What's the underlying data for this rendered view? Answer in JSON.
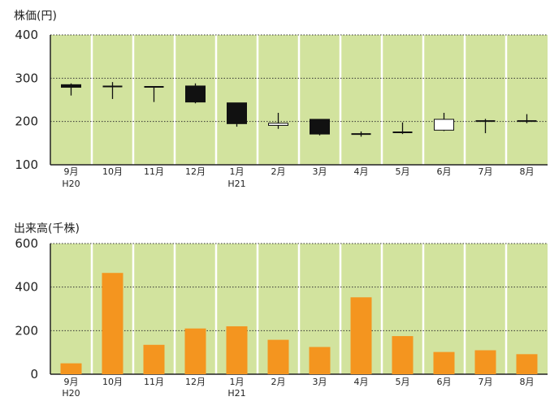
{
  "chart_data": [
    {
      "type": "candlestick",
      "title": "株価(円)",
      "ylim": [
        100,
        400
      ],
      "yticks": [
        "400",
        "300",
        "200",
        "100"
      ],
      "grid": true,
      "plot_background": "#d2e39e",
      "categories": [
        "9月",
        "10月",
        "11月",
        "12月",
        "1月",
        "2月",
        "3月",
        "4月",
        "5月",
        "6月",
        "7月",
        "8月"
      ],
      "sub_labels": [
        "H20",
        "",
        "",
        "",
        "H21",
        "",
        "",
        "",
        "",
        "",
        "",
        ""
      ],
      "candles": [
        {
          "open": 285,
          "close": 279,
          "high": 288,
          "low": 260
        },
        {
          "open": 281,
          "close": 281,
          "high": 291,
          "low": 252
        },
        {
          "open": 280,
          "close": 280,
          "high": 281,
          "low": 245
        },
        {
          "open": 282,
          "close": 245,
          "high": 288,
          "low": 242
        },
        {
          "open": 243,
          "close": 195,
          "high": 243,
          "low": 188
        },
        {
          "open": 191,
          "close": 196,
          "high": 220,
          "low": 183
        },
        {
          "open": 205,
          "close": 171,
          "high": 205,
          "low": 168
        },
        {
          "open": 171,
          "close": 169,
          "high": 177,
          "low": 165
        },
        {
          "open": 175,
          "close": 174,
          "high": 198,
          "low": 171
        },
        {
          "open": 180,
          "close": 205,
          "high": 220,
          "low": 178
        },
        {
          "open": 201,
          "close": 200,
          "high": 206,
          "low": 173
        },
        {
          "open": 201,
          "close": 198,
          "high": 217,
          "low": 196
        }
      ]
    },
    {
      "type": "bar",
      "title": "出来高(千株)",
      "ylim": [
        0,
        600
      ],
      "yticks": [
        "600",
        "400",
        "200",
        "0"
      ],
      "grid": true,
      "plot_background": "#d2e39e",
      "bar_color": "#f4951f",
      "categories": [
        "9月",
        "10月",
        "11月",
        "12月",
        "1月",
        "2月",
        "3月",
        "4月",
        "5月",
        "6月",
        "7月",
        "8月"
      ],
      "sub_labels": [
        "H20",
        "",
        "",
        "",
        "H21",
        "",
        "",
        "",
        "",
        "",
        "",
        ""
      ],
      "values": [
        50,
        465,
        135,
        210,
        220,
        158,
        125,
        353,
        175,
        102,
        110,
        92
      ]
    }
  ]
}
